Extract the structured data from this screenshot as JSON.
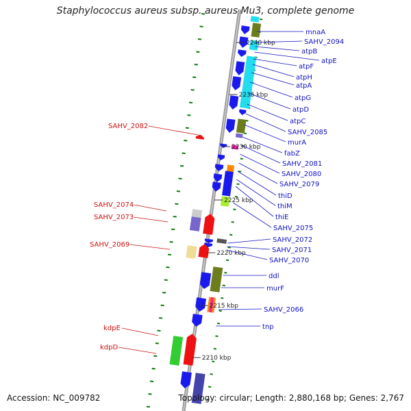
{
  "title": "Staphylococcus aureus subsp. aureus Mu3, complete genome",
  "accession": "Accession: NC_009782",
  "topology": "Topology: circular; Length: 2,880,168 bp; Genes: 2,767",
  "scale_ticks": [
    "2240 kbp",
    "2235 kbp",
    "2230 kbp",
    "2225 kbp",
    "2220 kbp",
    "2215 kbp",
    "2210 kbp"
  ],
  "right_labels": [
    "mnaA",
    "SAHV_2094",
    "atpB",
    "atpE",
    "atpF",
    "atpH",
    "atpA",
    "atpG",
    "atpD",
    "atpC",
    "SAHV_2085",
    "murA",
    "fabZ",
    "SAHV_2081",
    "SAHV_2080",
    "SAHV_2079",
    "thiD",
    "thiM",
    "thiE",
    "SAHV_2075",
    "SAHV_2072",
    "SAHV_2071",
    "SAHV_2070",
    "ddl",
    "murF",
    "SAHV_2066",
    "tnp"
  ],
  "left_labels": [
    "SAHV_2082",
    "SAHV_2074",
    "SAHV_2073",
    "SAHV_2069",
    "kdpE",
    "kdpD"
  ],
  "colors": {
    "forward_label": "#1010c0",
    "reverse_label": "#cc1111",
    "gene_blue": "#1a1aee",
    "gene_red": "#ee1111",
    "olive": "#6b7d1c",
    "cyan": "#22ddee",
    "green": "#33cc33",
    "lime": "#a6ee33",
    "orange": "#ff8800",
    "magenta": "#ee22aa",
    "lavender": "#7766cc",
    "khaki": "#eedd99",
    "axis": "#999999",
    "tick_green": "#117711"
  }
}
